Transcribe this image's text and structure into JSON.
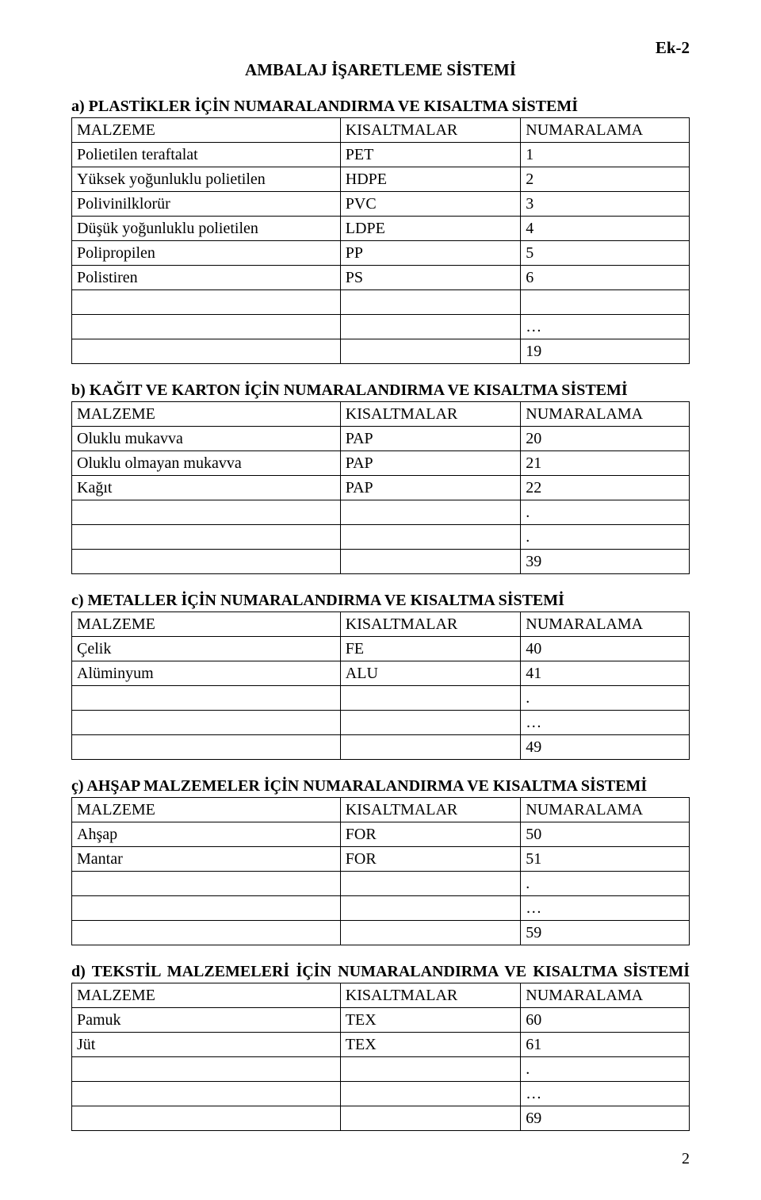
{
  "ek_label": "Ek-2",
  "main_title": "AMBALAJ İŞARETLEME SİSTEMİ",
  "page_number": "2",
  "header_labels": {
    "c1": "MALZEME",
    "c2": "KISALTMALAR",
    "c3": "NUMARALAMA"
  },
  "sections": [
    {
      "title": "a) PLASTİKLER İÇİN NUMARALANDIRMA VE KISALTMA SİSTEMİ",
      "justify": false,
      "rows": [
        [
          "Polietilen teraftalat",
          "PET",
          "1"
        ],
        [
          "Yüksek yoğunluklu polietilen",
          "HDPE",
          "2"
        ],
        [
          "Polivinilklorür",
          "PVC",
          "3"
        ],
        [
          "Düşük yoğunluklu polietilen",
          "LDPE",
          "4"
        ],
        [
          "Polipropilen",
          "PP",
          "5"
        ],
        [
          "Polistiren",
          "PS",
          "6"
        ],
        [
          "",
          "",
          ""
        ],
        [
          "",
          "",
          "…"
        ],
        [
          "",
          "",
          "19"
        ]
      ]
    },
    {
      "title": "b) KAĞIT VE KARTON İÇİN NUMARALANDIRMA VE KISALTMA SİSTEMİ",
      "justify": false,
      "rows": [
        [
          "Oluklu mukavva",
          "PAP",
          "20"
        ],
        [
          "Oluklu olmayan mukavva",
          "PAP",
          "21"
        ],
        [
          "Kağıt",
          "PAP",
          "22"
        ],
        [
          "",
          "",
          "."
        ],
        [
          "",
          "",
          "."
        ],
        [
          "",
          "",
          "39"
        ]
      ]
    },
    {
      "title": "c) METALLER İÇİN NUMARALANDIRMA VE KISALTMA SİSTEMİ",
      "justify": false,
      "rows": [
        [
          "Çelik",
          "FE",
          "40"
        ],
        [
          "Alüminyum",
          "ALU",
          "41"
        ],
        [
          "",
          "",
          "."
        ],
        [
          "",
          "",
          "…"
        ],
        [
          "",
          "",
          "49"
        ]
      ]
    },
    {
      "title": "ç) AHŞAP MALZEMELER İÇİN NUMARALANDIRMA VE KISALTMA SİSTEMİ",
      "justify": false,
      "rows": [
        [
          "Ahşap",
          "FOR",
          "50"
        ],
        [
          "Mantar",
          "FOR",
          "51"
        ],
        [
          "",
          "",
          "."
        ],
        [
          "",
          "",
          "…"
        ],
        [
          "",
          "",
          "59"
        ]
      ]
    },
    {
      "title": "d) TEKSTİL MALZEMELERİ İÇİN NUMARALANDIRMA VE KISALTMA SİSTEMİ",
      "justify": true,
      "rows": [
        [
          "Pamuk",
          "TEX",
          "60"
        ],
        [
          "Jüt",
          "TEX",
          "61"
        ],
        [
          "",
          "",
          "."
        ],
        [
          "",
          "",
          "…"
        ],
        [
          "",
          "",
          "69"
        ]
      ]
    }
  ]
}
